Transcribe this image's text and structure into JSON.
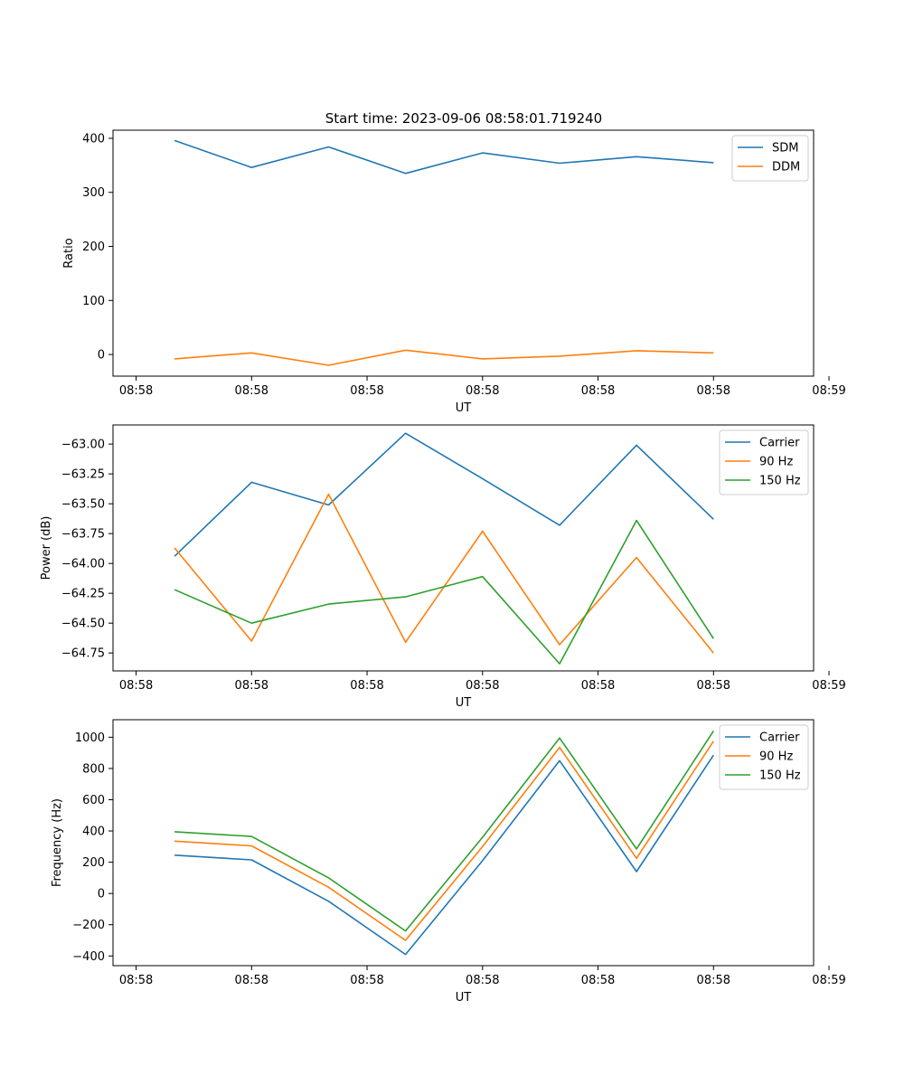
{
  "figure_title": "Start time: 2023-09-06 08:58:01.719240",
  "colors": {
    "blue": "#1f77b4",
    "orange": "#ff7f0e",
    "green": "#2ca02c"
  },
  "chart_data": [
    {
      "type": "line",
      "title": "Start time: 2023-09-06 08:58:01.719240",
      "xlabel": "UT",
      "ylabel": "Ratio",
      "x": [
        0.5,
        1.5,
        2.5,
        3.5,
        4.5,
        5.5,
        6.5,
        7.5
      ],
      "xlim": [
        -0.3,
        8.8
      ],
      "xticks": [
        0,
        1.5,
        3.0,
        4.5,
        6.0,
        7.5,
        9.0
      ],
      "xticklabels": [
        "08:58",
        "08:58",
        "08:58",
        "08:58",
        "08:58",
        "08:58",
        "08:59"
      ],
      "ylim": [
        -40,
        415
      ],
      "yticks": [
        0,
        100,
        200,
        300,
        400
      ],
      "yticklabels": [
        "0",
        "100",
        "200",
        "300",
        "400"
      ],
      "legend": "top-right",
      "series": [
        {
          "name": "SDM",
          "color": "#1f77b4",
          "values": [
            396,
            346,
            384,
            335,
            373,
            354,
            366,
            355
          ]
        },
        {
          "name": "DDM",
          "color": "#ff7f0e",
          "values": [
            -8,
            3,
            -20,
            8,
            -8,
            -3,
            7,
            3
          ]
        }
      ]
    },
    {
      "type": "line",
      "title": "",
      "xlabel": "UT",
      "ylabel": "Power (dB)",
      "x": [
        0.5,
        1.5,
        2.5,
        3.5,
        4.5,
        5.5,
        6.5,
        7.5
      ],
      "xlim": [
        -0.3,
        8.8
      ],
      "xticks": [
        0,
        1.5,
        3.0,
        4.5,
        6.0,
        7.5,
        9.0
      ],
      "xticklabels": [
        "08:58",
        "08:58",
        "08:58",
        "08:58",
        "08:58",
        "08:58",
        "08:59"
      ],
      "ylim": [
        -64.9,
        -62.84
      ],
      "yticks": [
        -64.75,
        -64.5,
        -64.25,
        -64.0,
        -63.75,
        -63.5,
        -63.25,
        -63.0
      ],
      "yticklabels": [
        "−64.75",
        "−64.50",
        "−64.25",
        "−64.00",
        "−63.75",
        "−63.50",
        "−63.25",
        "−63.00"
      ],
      "legend": "top-right",
      "series": [
        {
          "name": "Carrier",
          "color": "#1f77b4",
          "values": [
            -63.94,
            -63.32,
            -63.51,
            -62.91,
            -63.29,
            -63.68,
            -63.01,
            -63.63
          ]
        },
        {
          "name": "90 Hz",
          "color": "#ff7f0e",
          "values": [
            -63.87,
            -64.65,
            -63.42,
            -64.66,
            -63.73,
            -64.68,
            -63.95,
            -64.75
          ]
        },
        {
          "name": "150 Hz",
          "color": "#2ca02c",
          "values": [
            -64.22,
            -64.5,
            -64.34,
            -64.28,
            -64.11,
            -64.84,
            -63.64,
            -64.63
          ]
        }
      ]
    },
    {
      "type": "line",
      "title": "",
      "xlabel": "UT",
      "ylabel": "Frequency (Hz)",
      "x": [
        0.5,
        1.5,
        2.5,
        3.5,
        4.5,
        5.5,
        6.5,
        7.5
      ],
      "xlim": [
        -0.3,
        8.8
      ],
      "xticks": [
        0,
        1.5,
        3.0,
        4.5,
        6.0,
        7.5,
        9.0
      ],
      "xticklabels": [
        "08:58",
        "08:58",
        "08:58",
        "08:58",
        "08:58",
        "08:58",
        "08:59"
      ],
      "ylim": [
        -462,
        1112
      ],
      "yticks": [
        -400,
        -200,
        0,
        200,
        400,
        600,
        800,
        1000
      ],
      "yticklabels": [
        "−400",
        "−200",
        "0",
        "200",
        "400",
        "600",
        "800",
        "1000"
      ],
      "legend": "top-right",
      "series": [
        {
          "name": "Carrier",
          "color": "#1f77b4",
          "values": [
            245,
            215,
            -50,
            -390,
            210,
            850,
            140,
            885
          ]
        },
        {
          "name": "90 Hz",
          "color": "#ff7f0e",
          "values": [
            335,
            305,
            40,
            -300,
            300,
            935,
            225,
            975
          ]
        },
        {
          "name": "150 Hz",
          "color": "#2ca02c",
          "values": [
            395,
            365,
            100,
            -240,
            360,
            995,
            285,
            1040
          ]
        }
      ]
    }
  ]
}
